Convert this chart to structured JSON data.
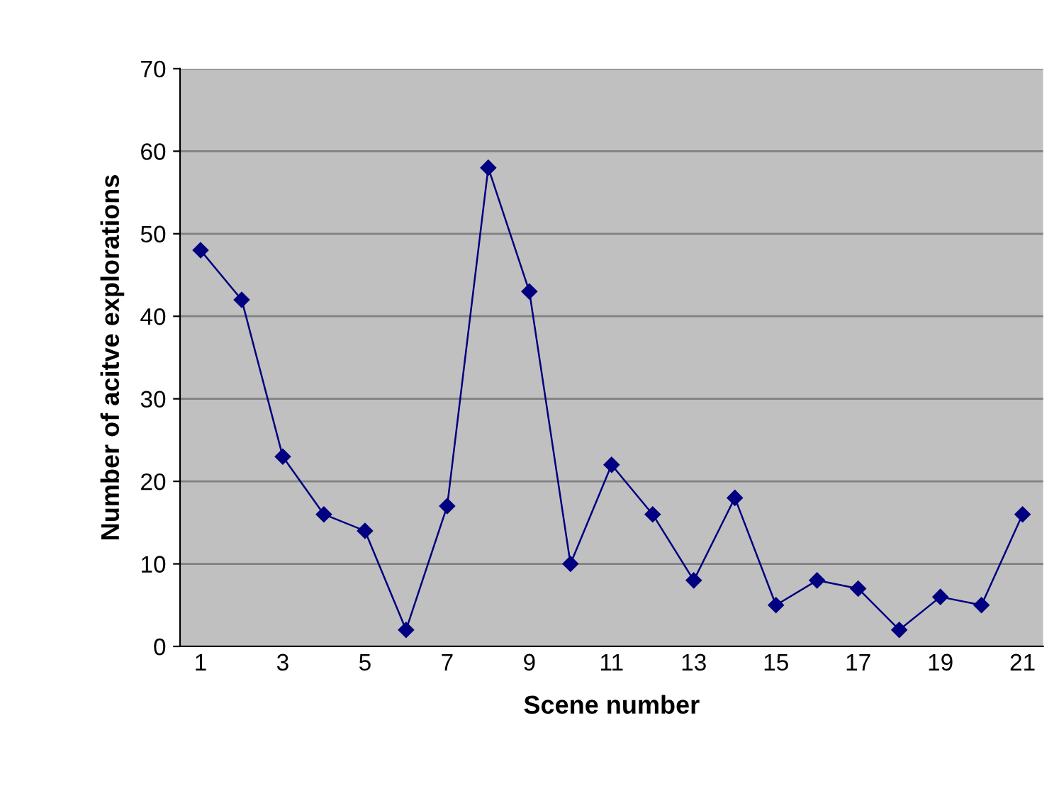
{
  "chart_data": {
    "type": "line",
    "xlabel": "Scene number",
    "ylabel": "Number of acitve explorations",
    "categories": [
      "1",
      null,
      "3",
      null,
      "5",
      null,
      "7",
      null,
      "9",
      null,
      "11",
      null,
      "13",
      null,
      "15",
      null,
      "17",
      null,
      "19",
      null,
      "21"
    ],
    "series": [
      {
        "color": "#000080",
        "values": [
          48,
          42,
          23,
          16,
          14,
          2,
          17,
          58,
          43,
          10,
          22,
          16,
          8,
          18,
          5,
          8,
          7,
          2,
          6,
          5,
          16
        ]
      }
    ],
    "ylim": [
      0,
      70
    ],
    "yticks": [
      0,
      10,
      20,
      30,
      40,
      50,
      60,
      70
    ],
    "grid": "y",
    "marker": "diamond",
    "line_style": "solid"
  }
}
